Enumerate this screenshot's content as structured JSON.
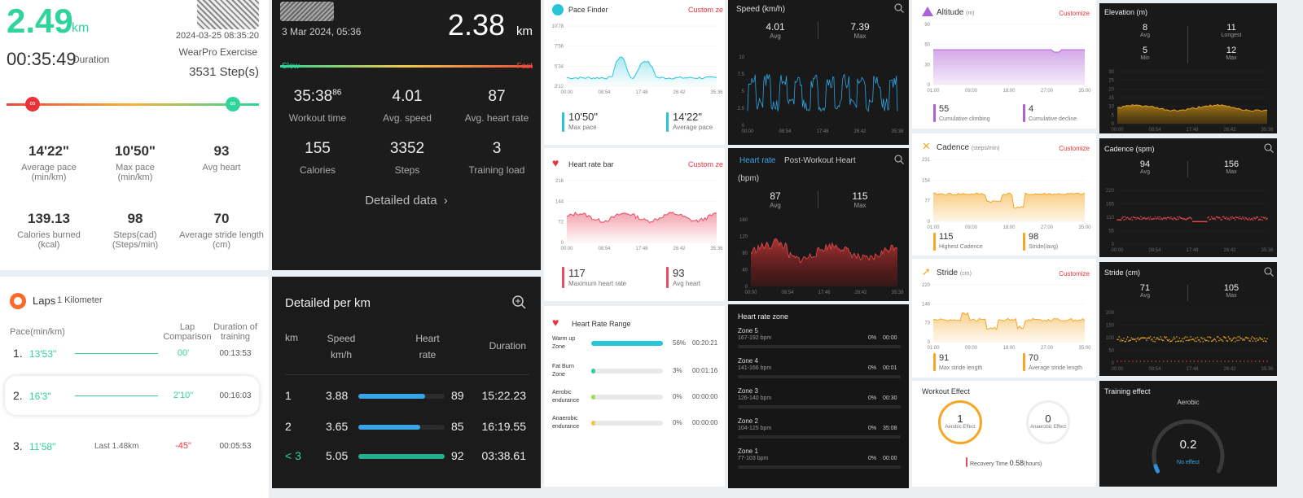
{
  "p1": {
    "distance": "2.49",
    "distance_unit": "km",
    "datetime": "2024-03-25 08:35:20",
    "duration": "00:35:49",
    "duration_label": "Duration",
    "app": "WearPro Exercise",
    "steps": "3531 Step(s)",
    "stats": [
      {
        "value": "14'22\"",
        "label": "Average pace\n(min/km)"
      },
      {
        "value": "10'50\"",
        "label": "Max pace\n(min/km)"
      },
      {
        "value": "93",
        "label": "Avg heart"
      },
      {
        "value": "139.13",
        "label": "Calories burned\n(kcal)"
      },
      {
        "value": "98",
        "label": "Steps(cad)\n(Steps/min)"
      },
      {
        "value": "70",
        "label": "Average stride length\n(cm)"
      }
    ]
  },
  "p2": {
    "title": "Laps",
    "subtitle": "1 Kilometer",
    "col_pace": "Pace(min/km)",
    "col_lap": "Lap\nComparison",
    "col_dur": "Duration of\ntraining",
    "laps": [
      {
        "n": "1.",
        "pace": "13'53\"",
        "note": "",
        "cmp": "00'",
        "dur": "00:13:53"
      },
      {
        "n": "2.",
        "pace": "16'3\"",
        "note": "",
        "cmp": "2'10\"",
        "dur": "00:16:03"
      },
      {
        "n": "3.",
        "pace": "11'58\"",
        "note": "Last 1.48km",
        "cmp": "-45\"",
        "dur": "00:05:53"
      }
    ]
  },
  "p3": {
    "date": "3 Mar 2024, 05:36",
    "distance": "2.38",
    "unit": "km",
    "slow": "Slow",
    "fast": "Fast",
    "stats": [
      {
        "value": "35:38",
        "sup": "86",
        "label": "Workout time"
      },
      {
        "value": "4.01",
        "sup": "",
        "label": "Avg. speed"
      },
      {
        "value": "87",
        "sup": "",
        "label": "Avg. heart rate"
      },
      {
        "value": "155",
        "sup": "",
        "label": "Calories"
      },
      {
        "value": "3352",
        "sup": "",
        "label": "Steps"
      },
      {
        "value": "3",
        "sup": "",
        "label": "Training load"
      }
    ],
    "detail_link": "Detailed data",
    "chevron": "›"
  },
  "p4": {
    "title": "Detailed per km",
    "h_km": "km",
    "h_speed1": "Speed",
    "h_speed2": "km/h",
    "h_hr1": "Heart",
    "h_hr2": "rate",
    "h_dur": "Duration",
    "rows": [
      {
        "km": "1",
        "speed": "3.88",
        "fill": 0.77,
        "color": "#3aa4e8",
        "hr": "89",
        "dur": "15:22.23"
      },
      {
        "km": "2",
        "speed": "3.65",
        "fill": 0.72,
        "color": "#3aa4e8",
        "hr": "85",
        "dur": "16:19.55"
      },
      {
        "km": "< 3",
        "speed": "5.05",
        "fill": 1.0,
        "color": "#23b08f",
        "hr": "92",
        "dur": "03:38.61"
      }
    ]
  },
  "p5": {
    "title": "Pace Finder",
    "custom": "Custom ze",
    "yticks": [
      "10'78",
      "7'56",
      "5'34",
      "3'12"
    ],
    "xticks": [
      "00:00",
      "08:54",
      "17:48",
      "26:42",
      "35:36"
    ],
    "max_pace": "10'50\"",
    "max_pace_label": "Max pace",
    "avg_pace": "14'22\"",
    "avg_pace_label": "Average pace"
  },
  "p6": {
    "title": "Heart rate bar",
    "custom": "Custom ze",
    "yticks": [
      "216",
      "144",
      "72",
      "0"
    ],
    "xticks": [
      "00:00",
      "08:54",
      "17:48",
      "26:42",
      "35:36"
    ],
    "max_hr": "117",
    "max_hr_label": "Maximum heart rate",
    "avg_hr": "93",
    "avg_hr_label": "Avg heart"
  },
  "p7": {
    "title": "Heart Rate Range",
    "rows": [
      {
        "label": "Warm up\nZone",
        "fill": 1.0,
        "color": "#26c5d8",
        "pct": "56%",
        "time": "00:20:21"
      },
      {
        "label": "Fat Burn\nZone",
        "fill": 0.06,
        "color": "#2fd49a",
        "pct": "3%",
        "time": "00:01:16"
      },
      {
        "label": "Aerobic\nendurance",
        "fill": 0.06,
        "color": "#9de05a",
        "pct": "0%",
        "time": "00:00:00"
      },
      {
        "label": "Anaerobic\nendurance",
        "fill": 0.06,
        "color": "#f2c94c",
        "pct": "0%",
        "time": "00:00:00"
      }
    ]
  },
  "p8": {
    "title": "Speed",
    "unit": "(km/h)",
    "avg": "4.01",
    "avg_label": "Avg",
    "max": "7.39",
    "max_label": "Max",
    "yticks": [
      "10",
      "7.5",
      "5",
      "2.5",
      "0"
    ],
    "xticks": [
      "00:00",
      "08:54",
      "17:48",
      "26:42",
      "35:38"
    ]
  },
  "p9": {
    "tab1": "Heart rate",
    "tab2": "Post-Workout Heart",
    "unit": "(bpm)",
    "avg": "87",
    "avg_label": "Avg",
    "max": "115",
    "max_label": "Max",
    "yticks": [
      "160",
      "120",
      "80",
      "40",
      "0"
    ],
    "xticks": [
      "00:00",
      "08:54",
      "17:46",
      "26:42",
      "35:38"
    ]
  },
  "p10": {
    "title": "Heart rate zone",
    "zones": [
      {
        "name": "Zone 5",
        "range": "167-192 bpm",
        "pct": "0%",
        "time": "00:00"
      },
      {
        "name": "Zone 4",
        "range": "141-166 bpm",
        "pct": "0%",
        "time": "00:01"
      },
      {
        "name": "Zone 3",
        "range": "126-140 bpm",
        "pct": "0%",
        "time": "00:30"
      },
      {
        "name": "Zone 2",
        "range": "104-125 bpm",
        "pct": "0%",
        "time": "35:08"
      },
      {
        "name": "Zone 1",
        "range": "77-103 bpm",
        "pct": "0%",
        "time": "00:00"
      }
    ]
  },
  "p11": {
    "title": "Altitude",
    "unit": "(m)",
    "custom": "Customize",
    "yticks": [
      "90",
      "60",
      "30",
      "0"
    ],
    "xticks": [
      "01:00",
      "09:00",
      "18:00",
      "27:00",
      "35:00"
    ],
    "v1": "55",
    "l1": "Cumulative climbing",
    "v2": "4",
    "l2": "Cumulative decline"
  },
  "p12": {
    "title": "Cadence",
    "unit": "(steps/min)",
    "custom": "Customize",
    "yticks": [
      "231",
      "154",
      "77",
      "0"
    ],
    "xticks": [
      "01:00",
      "09:00",
      "18:00",
      "27:00",
      "35:00"
    ],
    "v1": "115",
    "l1": "Highest Cadence",
    "v2": "98",
    "l2": "Stride(/avg)"
  },
  "p13": {
    "title": "Stride",
    "unit": "(cm)",
    "custom": "Customize",
    "yticks": [
      "220",
      "146",
      "73",
      "0"
    ],
    "xticks": [
      "01:00",
      "09:00",
      "18:00",
      "27:00",
      "35:00"
    ],
    "v1": "91",
    "l1": "Max stride length",
    "v2": "70",
    "l2": "Average stride length"
  },
  "p14": {
    "title": "Workout Effect",
    "aerobic": "1",
    "aerobic_label": "Aerobic Effect",
    "anaerobic": "0",
    "anaerobic_label": "Anaerobic Effect",
    "recovery_label": "Recovery Time",
    "recovery_value": "0.58",
    "recovery_unit": "(hours)"
  },
  "p15": {
    "title": "Elevation (m)",
    "s": [
      {
        "v": "8",
        "l": "Avg"
      },
      {
        "v": "11",
        "l": "Longest"
      },
      {
        "v": "5",
        "l": "Min"
      },
      {
        "v": "12",
        "l": "Max"
      }
    ],
    "yticks": [
      "30",
      "25",
      "20",
      "15",
      "10",
      "5",
      "0"
    ],
    "xticks": [
      "00:00",
      "08:54",
      "17:48",
      "26:42",
      "35:36"
    ]
  },
  "p16": {
    "title": "Cadence (spm)",
    "avg": "94",
    "avg_label": "Avg",
    "max": "156",
    "max_label": "Max",
    "yticks": [
      "220",
      "165",
      "110",
      "55",
      "0"
    ],
    "xticks": [
      "00:00",
      "08:54",
      "17:48",
      "26:42",
      "35:36"
    ]
  },
  "p17": {
    "title": "Stride (cm)",
    "avg": "71",
    "avg_label": "Avg",
    "max": "105",
    "max_label": "Max",
    "yticks": [
      "200",
      "150",
      "100",
      "50",
      "0"
    ],
    "xticks": [
      "00:00",
      "08:54",
      "17:48",
      "26:42",
      "35:36"
    ]
  },
  "p18": {
    "title": "Training effect",
    "subtitle": "Aerobic",
    "value": "0.2",
    "status": "No effect",
    "level": 0.04
  }
}
